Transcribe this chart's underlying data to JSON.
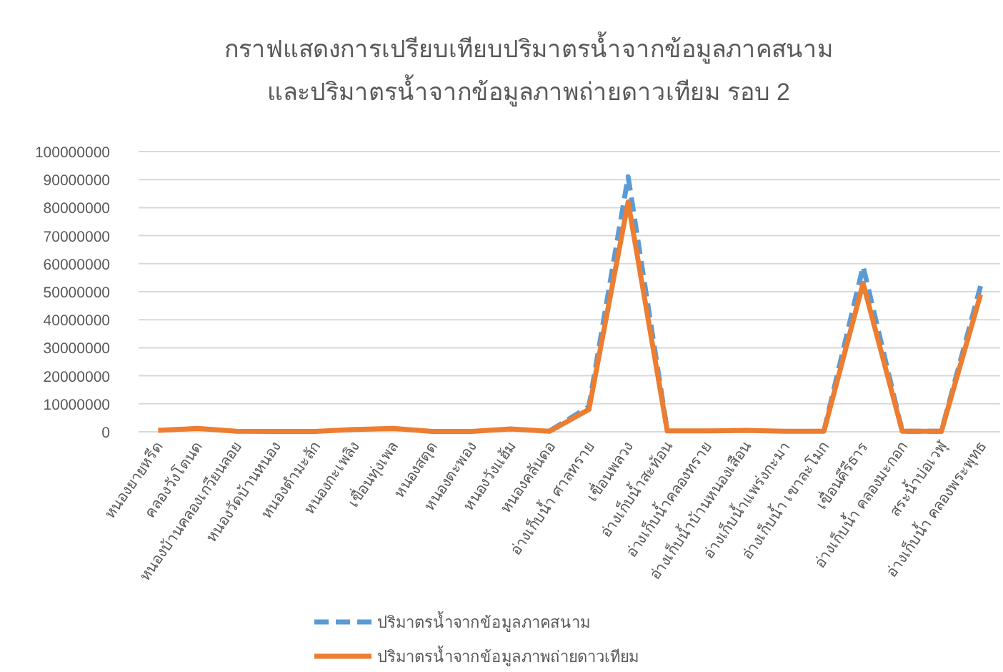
{
  "chart_data": {
    "type": "line",
    "title": "กราฟแสดงการเปรียบเทียบปริมาตรน้ำจากข้อมูลภาคสนาม\nและปริมาตรน้ำจากข้อมูลภาพถ่ายดาวเทียม รอบ 2",
    "categories": [
      "หนองยายหรีด",
      "คลองวังโตนด",
      "หนองบ้านคลองเกวียนลอย",
      "หนองวัดบ้านหนอง",
      "หนองตำมะลัก",
      "หนองกะเพลิง",
      "เขื่อนทุ่งเพล",
      "หนองสตุด",
      "หนองตะพอง",
      "หนองวังแฮ้ม",
      "หนองคลันดอ",
      "อ่างเก็บน้ำ ศาลทราย",
      "เขื่อนพลวง",
      "อ่างเก็บน้ำสะท้อน",
      "อ่างเก็บน้ำคลองทราย",
      "อ่างเก็บน้ำบ้านหนองเสือน",
      "อ่างเก็บน้ำแพร่งกะมา",
      "อ่างเก็บน้ำ เขาละโมก",
      "เขื่อนคีรีธาร",
      "อ่างเก็บน้ำ คลองมะกอก",
      "สระน้ำบ่อเวฬุ",
      "อ่างเก็บน้ำ คลองพระพุทธ"
    ],
    "series": [
      {
        "name": "ปริมาตรน้ำจากข้อมูลภาคสนาม",
        "color": "#5b9bd5",
        "line_style": "dashed",
        "values": [
          null,
          null,
          null,
          null,
          null,
          null,
          null,
          null,
          null,
          null,
          300000,
          9000000,
          91000000,
          300000,
          null,
          null,
          null,
          200000,
          59000000,
          200000,
          200000,
          52000000
        ]
      },
      {
        "name": "ปริมาตรน้ำจากข้อมูลภาพถ่ายดาวเทียม",
        "color": "#ed7d31",
        "line_style": "solid",
        "values": [
          500000,
          1200000,
          200000,
          100000,
          100000,
          800000,
          1200000,
          100000,
          100000,
          1000000,
          200000,
          8000000,
          82000000,
          300000,
          300000,
          500000,
          200000,
          200000,
          53000000,
          200000,
          200000,
          49000000
        ]
      }
    ],
    "ylim": [
      0,
      100000000
    ],
    "yticks": [
      0,
      10000000,
      20000000,
      30000000,
      40000000,
      50000000,
      60000000,
      70000000,
      80000000,
      90000000,
      100000000
    ],
    "grid": "y",
    "legend": "bottom",
    "marker": "none"
  }
}
